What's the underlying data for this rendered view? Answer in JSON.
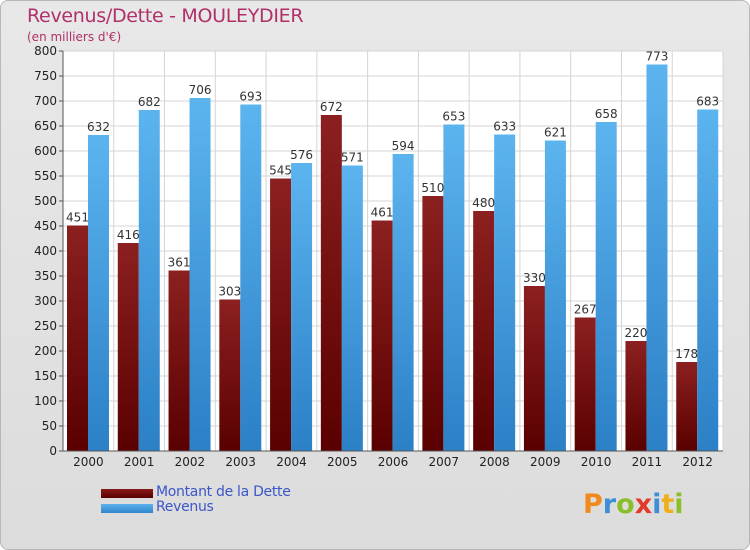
{
  "chart_data": {
    "type": "bar",
    "title": "Revenus/Dette - MOULEYDIER",
    "subtitle": "(en milliers d'€)",
    "categories": [
      "2000",
      "2001",
      "2002",
      "2003",
      "2004",
      "2005",
      "2006",
      "2007",
      "2008",
      "2009",
      "2010",
      "2011",
      "2012"
    ],
    "series": [
      {
        "name": "Montant de la Dette",
        "color": "#7a1414",
        "values": [
          451,
          416,
          361,
          303,
          545,
          672,
          461,
          510,
          480,
          330,
          267,
          220,
          178
        ]
      },
      {
        "name": "Revenus",
        "color": "#4da3e6",
        "values": [
          632,
          682,
          706,
          693,
          576,
          571,
          594,
          653,
          633,
          621,
          658,
          773,
          683
        ]
      }
    ],
    "ylim": [
      0,
      800
    ],
    "yticks": [
      0,
      50,
      100,
      150,
      200,
      250,
      300,
      350,
      400,
      450,
      500,
      550,
      600,
      650,
      700,
      750,
      800
    ],
    "grid": true,
    "legend_position": "bottom-left"
  },
  "logo": {
    "text": "Proxiti",
    "letters": [
      {
        "char": "P",
        "color": "#f08a1c"
      },
      {
        "char": "r",
        "color": "#3c8fd6"
      },
      {
        "char": "o",
        "color": "#8bbf2a"
      },
      {
        "char": "x",
        "color": "#e23a2a"
      },
      {
        "char": "i",
        "color": "#3c8fd6"
      },
      {
        "char": "t",
        "color": "#f0b01c"
      },
      {
        "char": "i",
        "color": "#8bbf2a"
      }
    ]
  }
}
